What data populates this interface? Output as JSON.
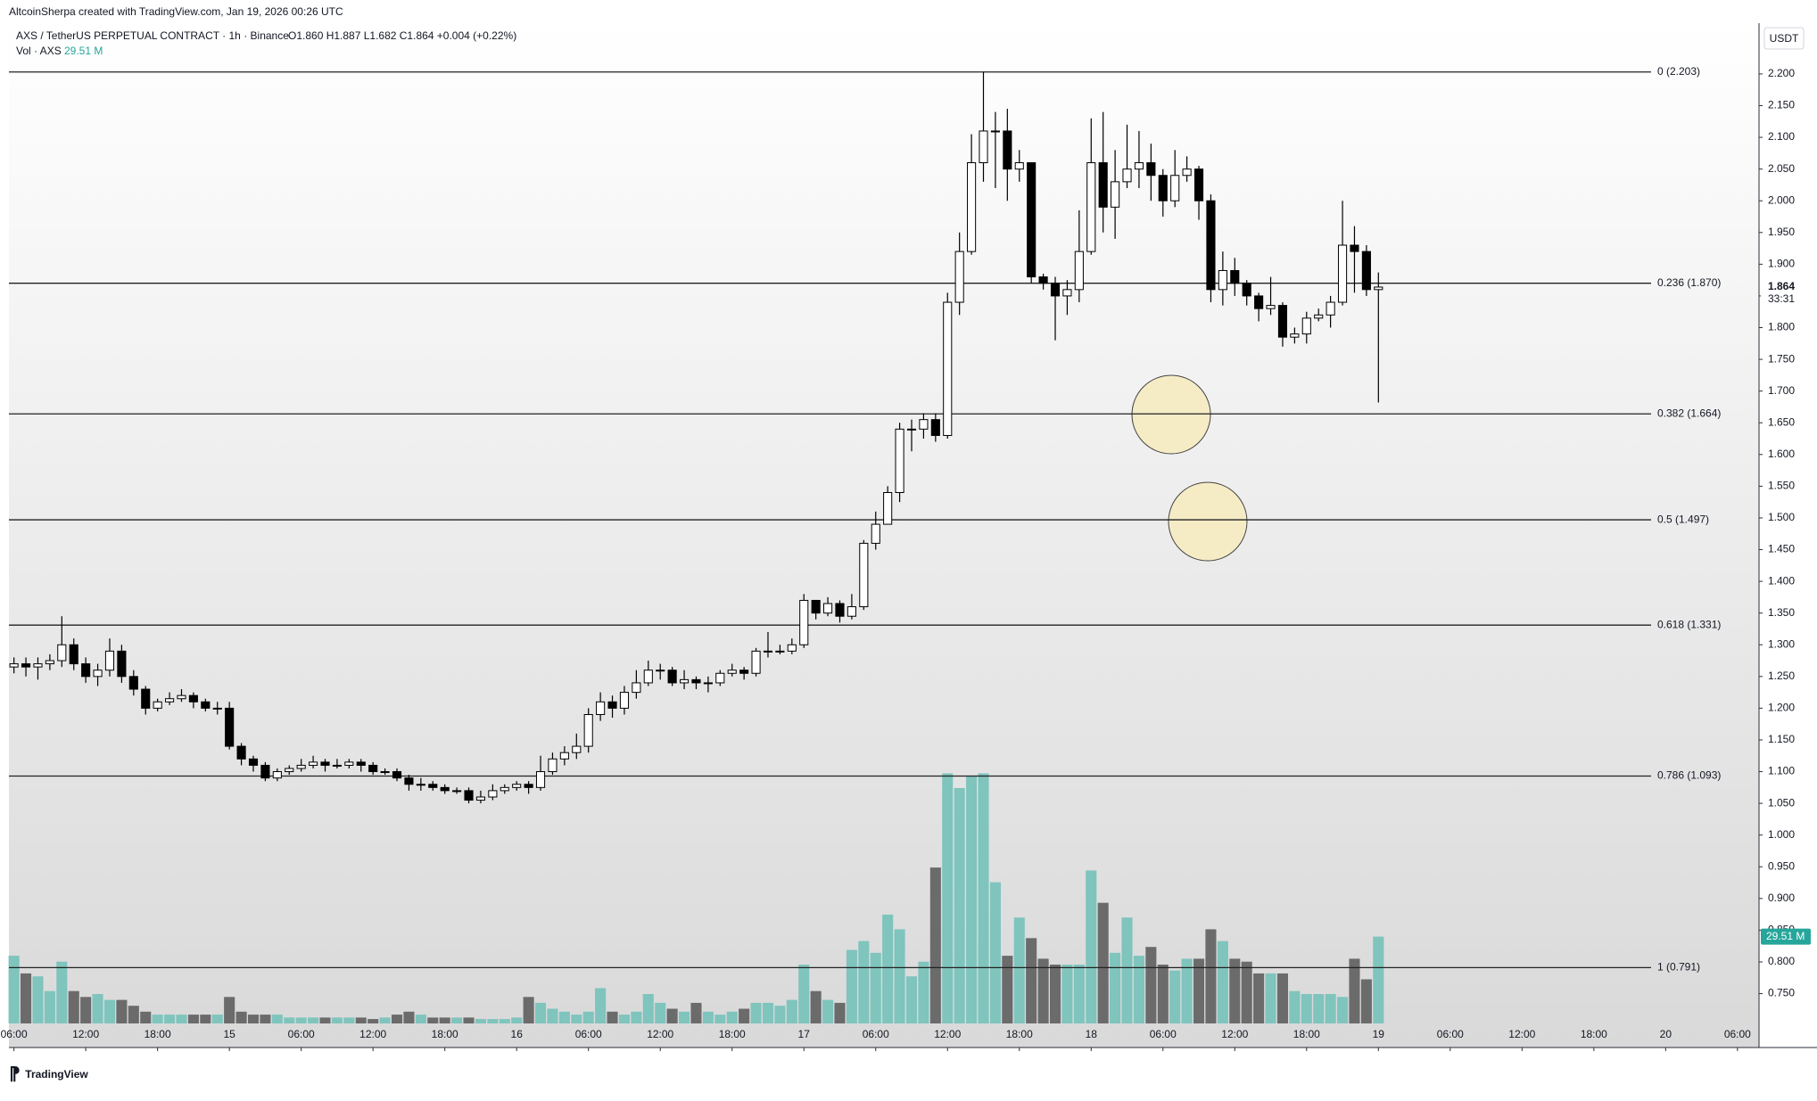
{
  "chart_data": {
    "type": "candlestick",
    "header": {
      "credit": "AltcoinSherpa created with TradingView.com, Jan 19, 2026 00:26 UTC",
      "symbol": "AXS / TetherUS PERPETUAL CONTRACT · 1h · Binance",
      "ohlc": "O1.860 H1.887 L1.682 C1.864 +0.004 (+0.22%)",
      "volume_title": "Vol · AXS",
      "volume_value": "29.51 M",
      "currency": "USDT",
      "logo": "TradingView"
    },
    "up_color": "#ffffff",
    "down_color": "#000000",
    "volume_up_color": "#7fc4bd",
    "volume_down_color": "#6b6b6b",
    "candles": [
      [
        1.265,
        1.28,
        1.255,
        1.27
      ],
      [
        1.27,
        1.28,
        1.25,
        1.265
      ],
      [
        1.265,
        1.28,
        1.245,
        1.27
      ],
      [
        1.27,
        1.285,
        1.26,
        1.275
      ],
      [
        1.275,
        1.345,
        1.265,
        1.3
      ],
      [
        1.3,
        1.31,
        1.26,
        1.27
      ],
      [
        1.27,
        1.28,
        1.24,
        1.25
      ],
      [
        1.25,
        1.27,
        1.235,
        1.26
      ],
      [
        1.26,
        1.31,
        1.25,
        1.29
      ],
      [
        1.29,
        1.3,
        1.24,
        1.25
      ],
      [
        1.25,
        1.26,
        1.22,
        1.23
      ],
      [
        1.23,
        1.235,
        1.19,
        1.2
      ],
      [
        1.2,
        1.215,
        1.195,
        1.21
      ],
      [
        1.21,
        1.225,
        1.205,
        1.215
      ],
      [
        1.215,
        1.23,
        1.21,
        1.22
      ],
      [
        1.22,
        1.225,
        1.2,
        1.21
      ],
      [
        1.21,
        1.215,
        1.195,
        1.2
      ],
      [
        1.2,
        1.21,
        1.19,
        1.2
      ],
      [
        1.2,
        1.21,
        1.135,
        1.14
      ],
      [
        1.14,
        1.145,
        1.11,
        1.12
      ],
      [
        1.12,
        1.125,
        1.1,
        1.11
      ],
      [
        1.11,
        1.115,
        1.085,
        1.09
      ],
      [
        1.09,
        1.105,
        1.085,
        1.1
      ],
      [
        1.1,
        1.11,
        1.095,
        1.105
      ],
      [
        1.105,
        1.12,
        1.1,
        1.11
      ],
      [
        1.11,
        1.125,
        1.105,
        1.115
      ],
      [
        1.115,
        1.12,
        1.1,
        1.11
      ],
      [
        1.11,
        1.12,
        1.105,
        1.11
      ],
      [
        1.11,
        1.12,
        1.105,
        1.115
      ],
      [
        1.115,
        1.12,
        1.1,
        1.11
      ],
      [
        1.11,
        1.115,
        1.095,
        1.1
      ],
      [
        1.1,
        1.105,
        1.095,
        1.1
      ],
      [
        1.1,
        1.105,
        1.085,
        1.09
      ],
      [
        1.09,
        1.095,
        1.07,
        1.08
      ],
      [
        1.08,
        1.09,
        1.07,
        1.08
      ],
      [
        1.08,
        1.085,
        1.07,
        1.075
      ],
      [
        1.075,
        1.08,
        1.065,
        1.07
      ],
      [
        1.07,
        1.075,
        1.065,
        1.07
      ],
      [
        1.07,
        1.075,
        1.05,
        1.055
      ],
      [
        1.055,
        1.07,
        1.05,
        1.06
      ],
      [
        1.06,
        1.08,
        1.055,
        1.07
      ],
      [
        1.07,
        1.08,
        1.065,
        1.075
      ],
      [
        1.075,
        1.085,
        1.07,
        1.08
      ],
      [
        1.08,
        1.085,
        1.065,
        1.075
      ],
      [
        1.075,
        1.125,
        1.07,
        1.1
      ],
      [
        1.1,
        1.13,
        1.095,
        1.12
      ],
      [
        1.12,
        1.14,
        1.11,
        1.13
      ],
      [
        1.13,
        1.16,
        1.12,
        1.14
      ],
      [
        1.14,
        1.2,
        1.13,
        1.19
      ],
      [
        1.19,
        1.225,
        1.18,
        1.21
      ],
      [
        1.21,
        1.22,
        1.185,
        1.2
      ],
      [
        1.2,
        1.235,
        1.19,
        1.225
      ],
      [
        1.225,
        1.26,
        1.215,
        1.24
      ],
      [
        1.24,
        1.275,
        1.235,
        1.26
      ],
      [
        1.26,
        1.27,
        1.245,
        1.26
      ],
      [
        1.26,
        1.265,
        1.235,
        1.24
      ],
      [
        1.24,
        1.26,
        1.23,
        1.245
      ],
      [
        1.245,
        1.25,
        1.23,
        1.24
      ],
      [
        1.24,
        1.25,
        1.225,
        1.24
      ],
      [
        1.24,
        1.26,
        1.235,
        1.255
      ],
      [
        1.255,
        1.27,
        1.25,
        1.26
      ],
      [
        1.26,
        1.265,
        1.245,
        1.255
      ],
      [
        1.255,
        1.295,
        1.25,
        1.29
      ],
      [
        1.29,
        1.32,
        1.28,
        1.29
      ],
      [
        1.29,
        1.3,
        1.285,
        1.29
      ],
      [
        1.29,
        1.31,
        1.285,
        1.3
      ],
      [
        1.3,
        1.38,
        1.295,
        1.37
      ],
      [
        1.37,
        1.37,
        1.34,
        1.35
      ],
      [
        1.35,
        1.375,
        1.345,
        1.365
      ],
      [
        1.365,
        1.37,
        1.335,
        1.345
      ],
      [
        1.345,
        1.38,
        1.34,
        1.36
      ],
      [
        1.36,
        1.465,
        1.355,
        1.46
      ],
      [
        1.46,
        1.51,
        1.45,
        1.49
      ],
      [
        1.49,
        1.55,
        1.49,
        1.54
      ],
      [
        1.54,
        1.65,
        1.525,
        1.64
      ],
      [
        1.64,
        1.655,
        1.605,
        1.64
      ],
      [
        1.64,
        1.665,
        1.625,
        1.655
      ],
      [
        1.655,
        1.665,
        1.62,
        1.63
      ],
      [
        1.63,
        1.855,
        1.625,
        1.84
      ],
      [
        1.84,
        1.95,
        1.82,
        1.92
      ],
      [
        1.92,
        2.105,
        1.915,
        2.06
      ],
      [
        2.06,
        2.203,
        2.03,
        2.11
      ],
      [
        2.11,
        2.14,
        2.02,
        2.11
      ],
      [
        2.11,
        2.145,
        2.0,
        2.05
      ],
      [
        2.05,
        2.08,
        2.03,
        2.06
      ],
      [
        2.06,
        2.06,
        1.87,
        1.88
      ],
      [
        1.88,
        1.885,
        1.86,
        1.87
      ],
      [
        1.87,
        1.88,
        1.78,
        1.85
      ],
      [
        1.85,
        1.875,
        1.82,
        1.86
      ],
      [
        1.86,
        1.985,
        1.84,
        1.92
      ],
      [
        1.92,
        2.13,
        1.915,
        2.06
      ],
      [
        2.06,
        2.14,
        1.95,
        1.99
      ],
      [
        1.99,
        2.08,
        1.94,
        2.03
      ],
      [
        2.03,
        2.12,
        2.02,
        2.05
      ],
      [
        2.05,
        2.11,
        2.02,
        2.06
      ],
      [
        2.06,
        2.09,
        2.0,
        2.04
      ],
      [
        2.04,
        2.05,
        1.975,
        2.0
      ],
      [
        2.0,
        2.08,
        1.99,
        2.04
      ],
      [
        2.04,
        2.07,
        2.03,
        2.05
      ],
      [
        2.05,
        2.055,
        1.97,
        2.0
      ],
      [
        2.0,
        2.01,
        1.84,
        1.86
      ],
      [
        1.86,
        1.92,
        1.835,
        1.89
      ],
      [
        1.89,
        1.91,
        1.85,
        1.87
      ],
      [
        1.87,
        1.875,
        1.835,
        1.85
      ],
      [
        1.85,
        1.855,
        1.81,
        1.83
      ],
      [
        1.83,
        1.88,
        1.82,
        1.835
      ],
      [
        1.835,
        1.84,
        1.77,
        1.785
      ],
      [
        1.785,
        1.8,
        1.775,
        1.79
      ],
      [
        1.79,
        1.825,
        1.775,
        1.815
      ],
      [
        1.815,
        1.83,
        1.81,
        1.82
      ],
      [
        1.82,
        1.85,
        1.8,
        1.84
      ],
      [
        1.84,
        2.0,
        1.835,
        1.93
      ],
      [
        1.93,
        1.96,
        1.855,
        1.92
      ],
      [
        1.92,
        1.93,
        1.85,
        1.86
      ],
      [
        1.86,
        1.887,
        1.682,
        1.864
      ]
    ],
    "volume": [
      23,
      17,
      16,
      11,
      21,
      11,
      9,
      10,
      8,
      8,
      6,
      4,
      3,
      3,
      3,
      3,
      3,
      3,
      9,
      4,
      3,
      3,
      3,
      2,
      2,
      2,
      2,
      2,
      2,
      2,
      1.5,
      2,
      3,
      4,
      3,
      2,
      2,
      2,
      2,
      1.5,
      1.5,
      1.5,
      2,
      9,
      7,
      5,
      4,
      3,
      4,
      12,
      4,
      3,
      4,
      10,
      7,
      5,
      4,
      7,
      4,
      3,
      4,
      5,
      7,
      7,
      6,
      8,
      20,
      11,
      8,
      7,
      25,
      28,
      24,
      37,
      32,
      16,
      21,
      53,
      85,
      80,
      84,
      85,
      48,
      23,
      36,
      29,
      22,
      20,
      20,
      20,
      52,
      41,
      24,
      36,
      23,
      26,
      20,
      18,
      22,
      22,
      32,
      28,
      22,
      21,
      17,
      17,
      17,
      11,
      10,
      10,
      10,
      9,
      22,
      15,
      29.51
    ],
    "volume_lim": [
      0,
      340
    ],
    "last_price": 1.864,
    "countdown": "33:31",
    "fib_levels": [
      {
        "value": 2.203,
        "label": "0 (2.203)"
      },
      {
        "value": 1.87,
        "label": "0.236 (1.870)"
      },
      {
        "value": 1.664,
        "label": "0.382 (1.664)"
      },
      {
        "value": 1.497,
        "label": "0.5 (1.497)"
      },
      {
        "value": 1.331,
        "label": "0.618 (1.331)"
      },
      {
        "value": 1.093,
        "label": "0.786 (1.093)"
      },
      {
        "value": 0.791,
        "label": "1 (0.791)"
      }
    ],
    "ylim": [
      0.703,
      2.28
    ],
    "yticks": [
      {
        "value": 0.75,
        "label": "0.750"
      },
      {
        "value": 0.8,
        "label": "0.800"
      },
      {
        "value": 0.85,
        "label": "0.850"
      },
      {
        "value": 0.9,
        "label": "0.900"
      },
      {
        "value": 0.95,
        "label": "0.950"
      },
      {
        "value": 1.0,
        "label": "1.000"
      },
      {
        "value": 1.05,
        "label": "1.050"
      },
      {
        "value": 1.1,
        "label": "1.100"
      },
      {
        "value": 1.15,
        "label": "1.150"
      },
      {
        "value": 1.2,
        "label": "1.200"
      },
      {
        "value": 1.25,
        "label": "1.250"
      },
      {
        "value": 1.3,
        "label": "1.300"
      },
      {
        "value": 1.35,
        "label": "1.350"
      },
      {
        "value": 1.4,
        "label": "1.400"
      },
      {
        "value": 1.45,
        "label": "1.450"
      },
      {
        "value": 1.5,
        "label": "1.500"
      },
      {
        "value": 1.55,
        "label": "1.550"
      },
      {
        "value": 1.6,
        "label": "1.600"
      },
      {
        "value": 1.65,
        "label": "1.650"
      },
      {
        "value": 1.7,
        "label": "1.700"
      },
      {
        "value": 1.75,
        "label": "1.750"
      },
      {
        "value": 1.8,
        "label": "1.800"
      },
      {
        "value": 1.85,
        "label": "1.850"
      },
      {
        "value": 1.9,
        "label": "1.900"
      },
      {
        "value": 1.95,
        "label": "1.950"
      },
      {
        "value": 2.0,
        "label": "2.000"
      },
      {
        "value": 2.05,
        "label": "2.050"
      },
      {
        "value": 2.1,
        "label": "2.100"
      },
      {
        "value": 2.15,
        "label": "2.150"
      },
      {
        "value": 2.2,
        "label": "2.200"
      }
    ],
    "xlim": [
      -0.42,
      145.8
    ],
    "xticks": [
      {
        "value": 0,
        "label": "06:00"
      },
      {
        "value": 6,
        "label": "12:00"
      },
      {
        "value": 12,
        "label": "18:00"
      },
      {
        "value": 18,
        "label": "15"
      },
      {
        "value": 24,
        "label": "06:00"
      },
      {
        "value": 30,
        "label": "12:00"
      },
      {
        "value": 36,
        "label": "18:00"
      },
      {
        "value": 42,
        "label": "16"
      },
      {
        "value": 48,
        "label": "06:00"
      },
      {
        "value": 54,
        "label": "12:00"
      },
      {
        "value": 60,
        "label": "18:00"
      },
      {
        "value": 66,
        "label": "17"
      },
      {
        "value": 72,
        "label": "06:00"
      },
      {
        "value": 78,
        "label": "12:00"
      },
      {
        "value": 84,
        "label": "18:00"
      },
      {
        "value": 90,
        "label": "18"
      },
      {
        "value": 96,
        "label": "06:00"
      },
      {
        "value": 102,
        "label": "12:00"
      },
      {
        "value": 108,
        "label": "18:00"
      },
      {
        "value": 114,
        "label": "19"
      },
      {
        "value": 120,
        "label": "06:00"
      },
      {
        "value": 126,
        "label": "12:00"
      },
      {
        "value": 132,
        "label": "18:00"
      },
      {
        "value": 138,
        "label": "20"
      },
      {
        "value": 144,
        "label": "06:00"
      }
    ]
  }
}
